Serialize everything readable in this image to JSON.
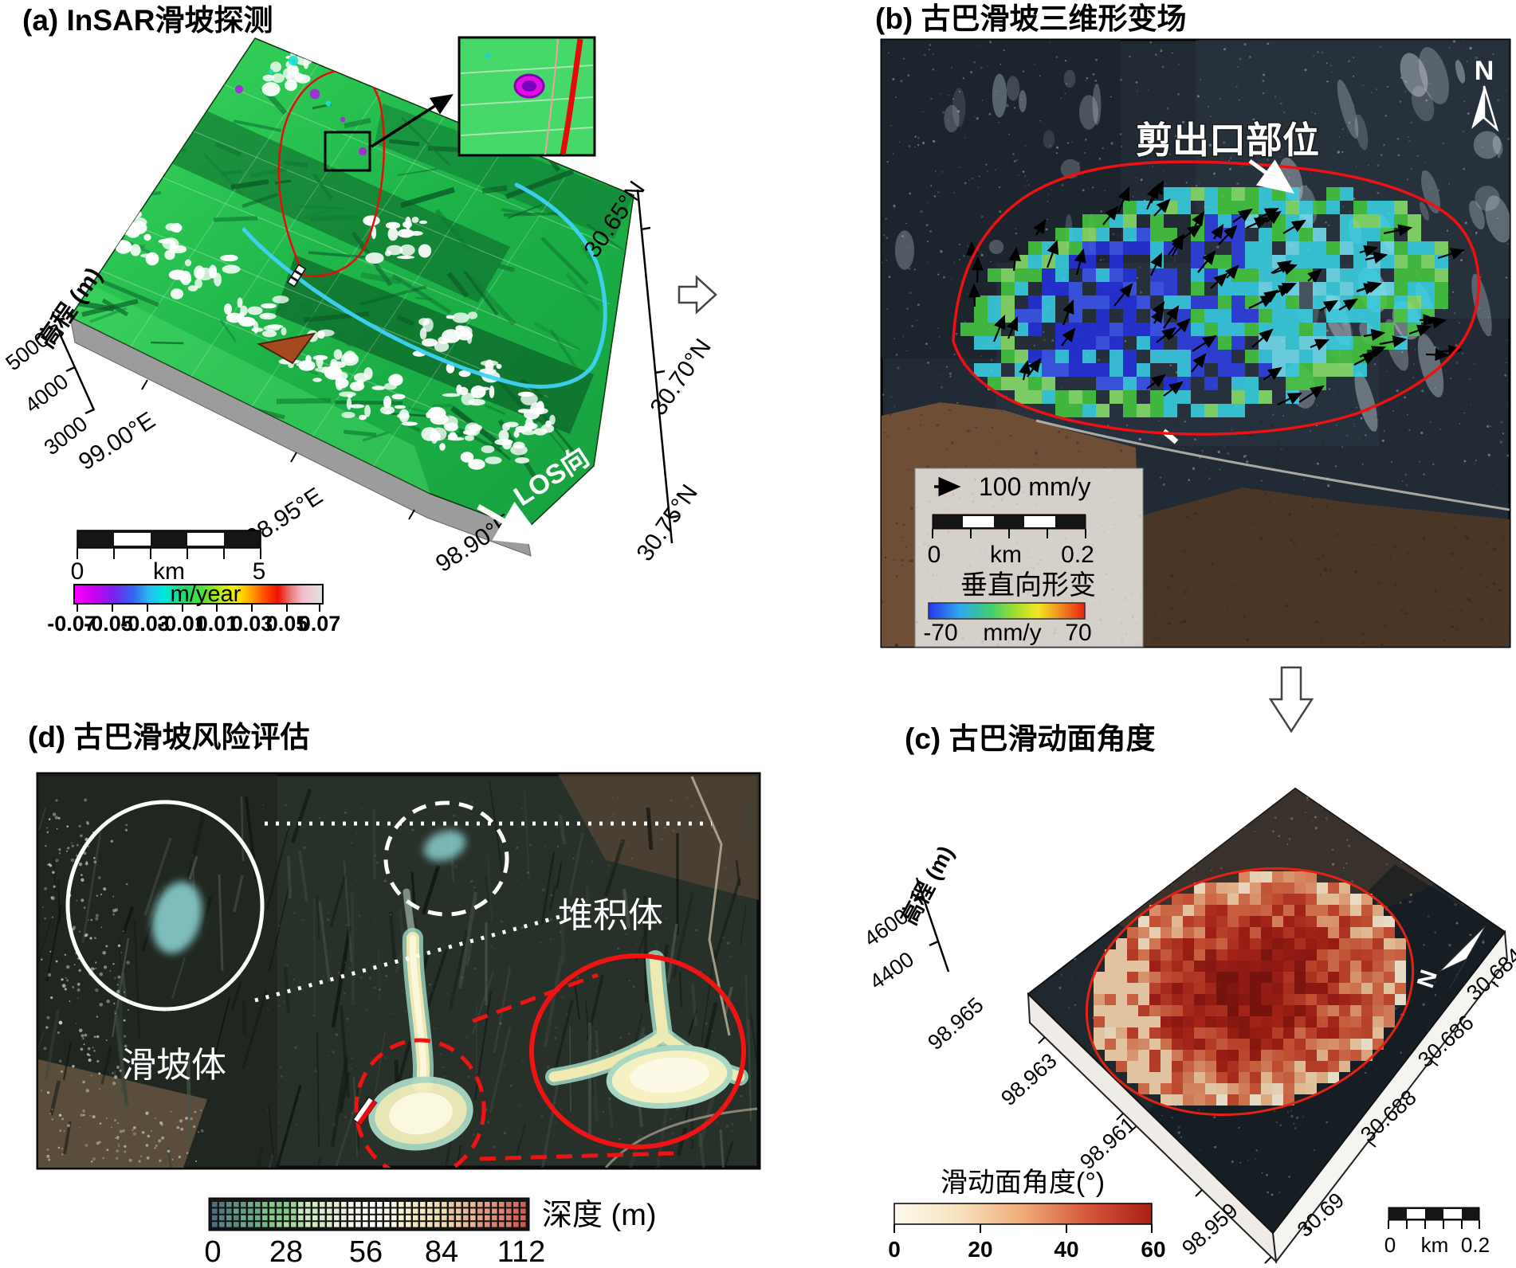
{
  "panels": {
    "a": {
      "title": "(a) InSAR滑坡探测",
      "elev": {
        "label": "高程 (m)",
        "ticks": [
          "5000",
          "4000",
          "3000"
        ]
      },
      "lon_ticks": [
        "99.00°E",
        "98.95°E",
        "98.90°E"
      ],
      "lat_ticks": [
        "30.65°N",
        "30.70°N",
        "30.75°N"
      ],
      "los_label": "LOS向",
      "scalebar": {
        "zero": "0",
        "unit": "km",
        "max": "5"
      },
      "colorbar": {
        "label": "m/year",
        "ticks": [
          "-0.07",
          "-0.05",
          "-0.03",
          "-0.01",
          "0.01",
          "0.03",
          "0.05",
          "0.07"
        ]
      }
    },
    "b": {
      "title": "(b) 古巴滑坡三维形变场",
      "annotation": "剪出口部位",
      "north_label": "N",
      "legend": {
        "vector_label": "100 mm/y",
        "scalebar": {
          "zero": "0",
          "unit": "km",
          "max": "0.2"
        },
        "colorbar_title": "垂直向形变",
        "colorbar_min": "-70",
        "colorbar_unit": "mm/y",
        "colorbar_max": "70"
      }
    },
    "c": {
      "title": "(c) 古巴滑动面角度",
      "elev": {
        "label": "高程 (m)",
        "ticks": [
          "4600",
          "4400"
        ]
      },
      "lon_ticks": [
        "98.965",
        "98.963",
        "98.961",
        "98.959"
      ],
      "lat_ticks": [
        "30.684",
        "30.686",
        "30.688",
        "30.69"
      ],
      "north_label": "N",
      "colorbar": {
        "title": "滑动面角度(°)",
        "ticks": [
          "0",
          "20",
          "40",
          "60"
        ]
      },
      "scalebar": {
        "zero": "0",
        "unit": "km",
        "max": "0.2"
      }
    },
    "d": {
      "title": "(d) 古巴滑坡风险评估",
      "deposit_label": "堆积体",
      "landslide_label": "滑坡体",
      "colorbar": {
        "label": "深度 (m)",
        "ticks": [
          "0",
          "28",
          "56",
          "84",
          "112"
        ]
      }
    }
  },
  "colors": {
    "boundary_red": "#ee1414",
    "terrain_green": "#1db348",
    "river_blue": "#3fd2f7",
    "deformation_blue": "#2430dd",
    "deformation_cyan": "#38cde6",
    "deformation_green": "#46c840",
    "heat_dark_red": "#7d120c",
    "heat_cream": "#f6ead2"
  }
}
